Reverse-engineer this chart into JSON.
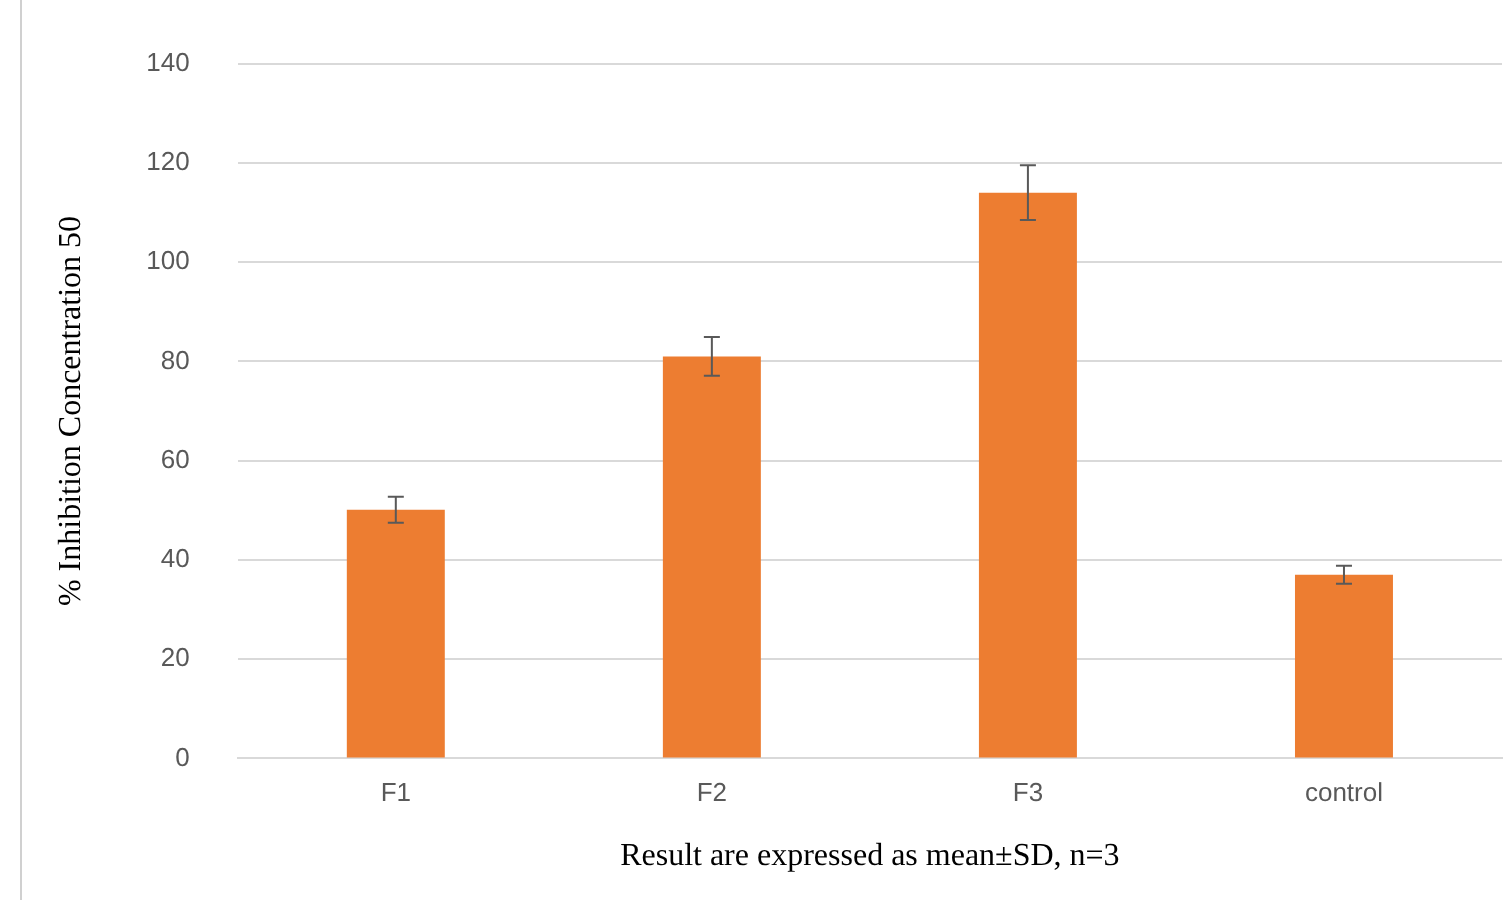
{
  "chart_data": {
    "type": "bar",
    "xlabel": "Result are expressed as mean±SD, n=3",
    "ylabel": "% Inhibition Concentration 50",
    "categories": [
      "F1",
      "F2",
      "F3",
      "control"
    ],
    "values": [
      50.1,
      81.0,
      114.0,
      37.0
    ],
    "errors": [
      2.6,
      3.9,
      5.5,
      1.8
    ],
    "color": "#ed7d31",
    "ylim": [
      0,
      140
    ],
    "yticks": [
      0,
      20,
      40,
      60,
      80,
      100,
      120,
      140
    ],
    "grid": "y",
    "legend": false
  }
}
